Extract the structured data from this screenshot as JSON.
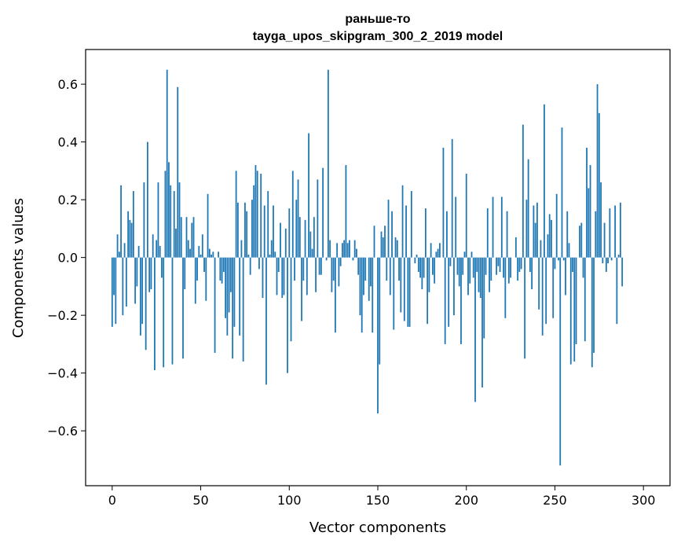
{
  "chart_data": {
    "type": "bar",
    "title_line1": "раньше-то",
    "title_line2": "tayga_upos_skipgram_300_2_2019 model",
    "xlabel": "Vector components",
    "ylabel": "Components values",
    "xlim": [
      -15,
      315
    ],
    "ylim": [
      -0.79,
      0.72
    ],
    "xticks": [
      0,
      50,
      100,
      150,
      200,
      250,
      300
    ],
    "xtick_labels": [
      "0",
      "50",
      "100",
      "150",
      "200",
      "250",
      "300"
    ],
    "yticks": [
      -0.6,
      -0.4,
      -0.2,
      0.0,
      0.2,
      0.4,
      0.6
    ],
    "ytick_labels": [
      "−0.6",
      "−0.4",
      "−0.2",
      "0.0",
      "0.2",
      "0.4",
      "0.6"
    ],
    "bar_color": "#1f77b4",
    "values": [
      -0.24,
      -0.13,
      -0.23,
      0.08,
      0.02,
      0.25,
      -0.2,
      0.05,
      -0.17,
      0.16,
      0.13,
      0.12,
      0.23,
      -0.16,
      -0.1,
      0.04,
      -0.27,
      -0.23,
      0.26,
      -0.32,
      0.4,
      -0.12,
      -0.11,
      0.08,
      -0.39,
      0.06,
      0.26,
      0.04,
      -0.07,
      -0.38,
      0.3,
      0.65,
      0.33,
      0.25,
      -0.37,
      0.23,
      0.1,
      0.59,
      0.26,
      0.14,
      -0.35,
      -0.11,
      0.14,
      0.06,
      0.03,
      0.12,
      0.14,
      -0.16,
      -0.08,
      0.04,
      0.01,
      0.08,
      -0.05,
      -0.15,
      0.22,
      0.03,
      0.01,
      0.02,
      -0.33,
      0.0,
      0.02,
      -0.08,
      -0.09,
      -0.05,
      -0.21,
      -0.27,
      -0.19,
      -0.12,
      -0.35,
      -0.24,
      0.3,
      0.19,
      -0.27,
      0.06,
      -0.36,
      0.19,
      0.16,
      0.01,
      -0.06,
      0.2,
      0.25,
      0.32,
      0.3,
      -0.04,
      0.29,
      -0.14,
      0.18,
      -0.44,
      0.23,
      0.01,
      0.06,
      0.18,
      0.02,
      -0.13,
      -0.05,
      0.12,
      -0.14,
      -0.13,
      0.1,
      -0.4,
      0.17,
      -0.29,
      0.3,
      -0.08,
      0.2,
      0.27,
      0.14,
      -0.22,
      -0.08,
      0.13,
      -0.13,
      0.43,
      0.09,
      0.03,
      0.14,
      -0.12,
      0.27,
      -0.06,
      -0.06,
      0.31,
      0.0,
      -0.01,
      0.65,
      0.06,
      -0.12,
      -0.08,
      -0.26,
      0.05,
      -0.1,
      -0.03,
      0.05,
      0.06,
      0.32,
      0.05,
      0.06,
      0.0,
      -0.01,
      0.06,
      0.03,
      -0.06,
      -0.2,
      -0.26,
      -0.13,
      -0.08,
      0.0,
      -0.15,
      -0.1,
      -0.26,
      0.11,
      0.0,
      -0.54,
      -0.37,
      0.09,
      0.07,
      0.11,
      -0.08,
      0.2,
      -0.13,
      0.16,
      -0.25,
      0.07,
      0.06,
      -0.08,
      -0.19,
      0.25,
      -0.22,
      0.18,
      -0.24,
      -0.24,
      0.23,
      0.0,
      -0.02,
      0.01,
      -0.05,
      -0.07,
      -0.11,
      -0.07,
      0.17,
      -0.23,
      -0.12,
      0.05,
      -0.06,
      -0.09,
      0.02,
      0.03,
      0.05,
      0.0,
      0.38,
      -0.3,
      0.16,
      -0.24,
      -0.03,
      0.41,
      -0.2,
      0.21,
      -0.06,
      -0.1,
      -0.3,
      -0.06,
      0.02,
      0.29,
      -0.13,
      -0.09,
      0.02,
      -0.07,
      -0.5,
      -0.05,
      -0.12,
      -0.14,
      -0.45,
      -0.28,
      -0.06,
      0.17,
      -0.12,
      -0.08,
      0.21,
      0.0,
      -0.06,
      -0.03,
      -0.05,
      0.21,
      -0.07,
      -0.21,
      0.16,
      -0.09,
      -0.07,
      0.0,
      0.0,
      0.07,
      -0.08,
      -0.05,
      -0.04,
      0.46,
      -0.35,
      0.2,
      0.34,
      -0.05,
      -0.11,
      0.18,
      0.12,
      0.19,
      -0.18,
      0.06,
      -0.27,
      0.53,
      -0.23,
      0.08,
      0.15,
      0.13,
      -0.21,
      -0.04,
      0.22,
      -0.01,
      -0.72,
      0.45,
      -0.01,
      -0.13,
      0.16,
      0.05,
      -0.37,
      -0.05,
      -0.36,
      -0.3,
      0.0,
      0.11,
      0.12,
      -0.07,
      -0.29,
      0.38,
      0.24,
      0.32,
      -0.38,
      -0.33,
      0.16,
      0.6,
      0.5,
      0.26,
      -0.02,
      0.12,
      -0.05,
      -0.02,
      0.17,
      -0.01,
      0.0,
      0.18,
      -0.23,
      0.01,
      0.19,
      -0.1
    ]
  }
}
